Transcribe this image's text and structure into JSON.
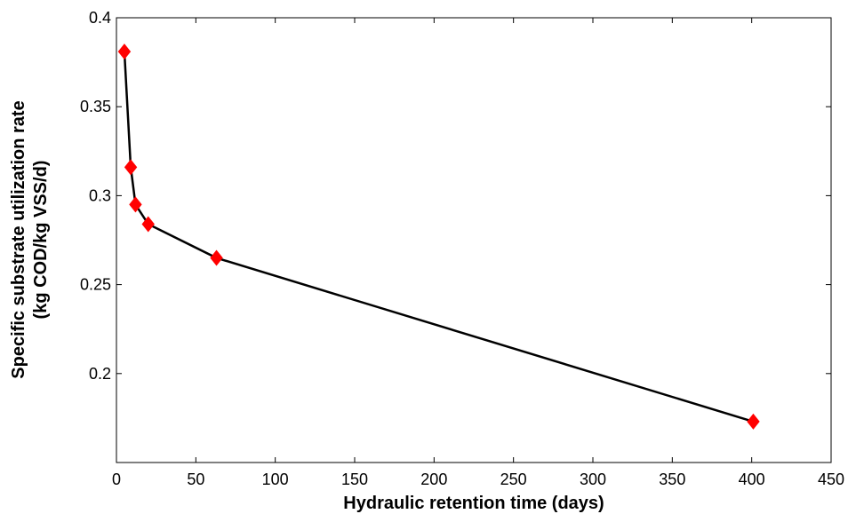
{
  "chart_data": {
    "type": "line",
    "title": "",
    "xlabel": "Hydraulic retention time (days)",
    "ylabel": [
      "Specific substrate utilization rate",
      "(kg COD/kg VSS/d)"
    ],
    "xlim": [
      0,
      450
    ],
    "ylim": [
      0.15,
      0.4
    ],
    "xticks": [
      0,
      50,
      100,
      150,
      200,
      250,
      300,
      350,
      400,
      450
    ],
    "yticks": [
      0.2,
      0.25,
      0.3,
      0.35,
      0.4
    ],
    "ytick_labels": [
      "0.2",
      "0.25",
      "0.3",
      "0.35",
      "0.4"
    ],
    "grid": false,
    "legend": "none",
    "series": [
      {
        "x": [
          5,
          9,
          12,
          20,
          63,
          401
        ],
        "y": [
          0.381,
          0.316,
          0.295,
          0.284,
          0.265,
          0.173
        ],
        "line_color": "#000000",
        "marker": "diamond",
        "marker_color": "#ff0000"
      }
    ]
  }
}
